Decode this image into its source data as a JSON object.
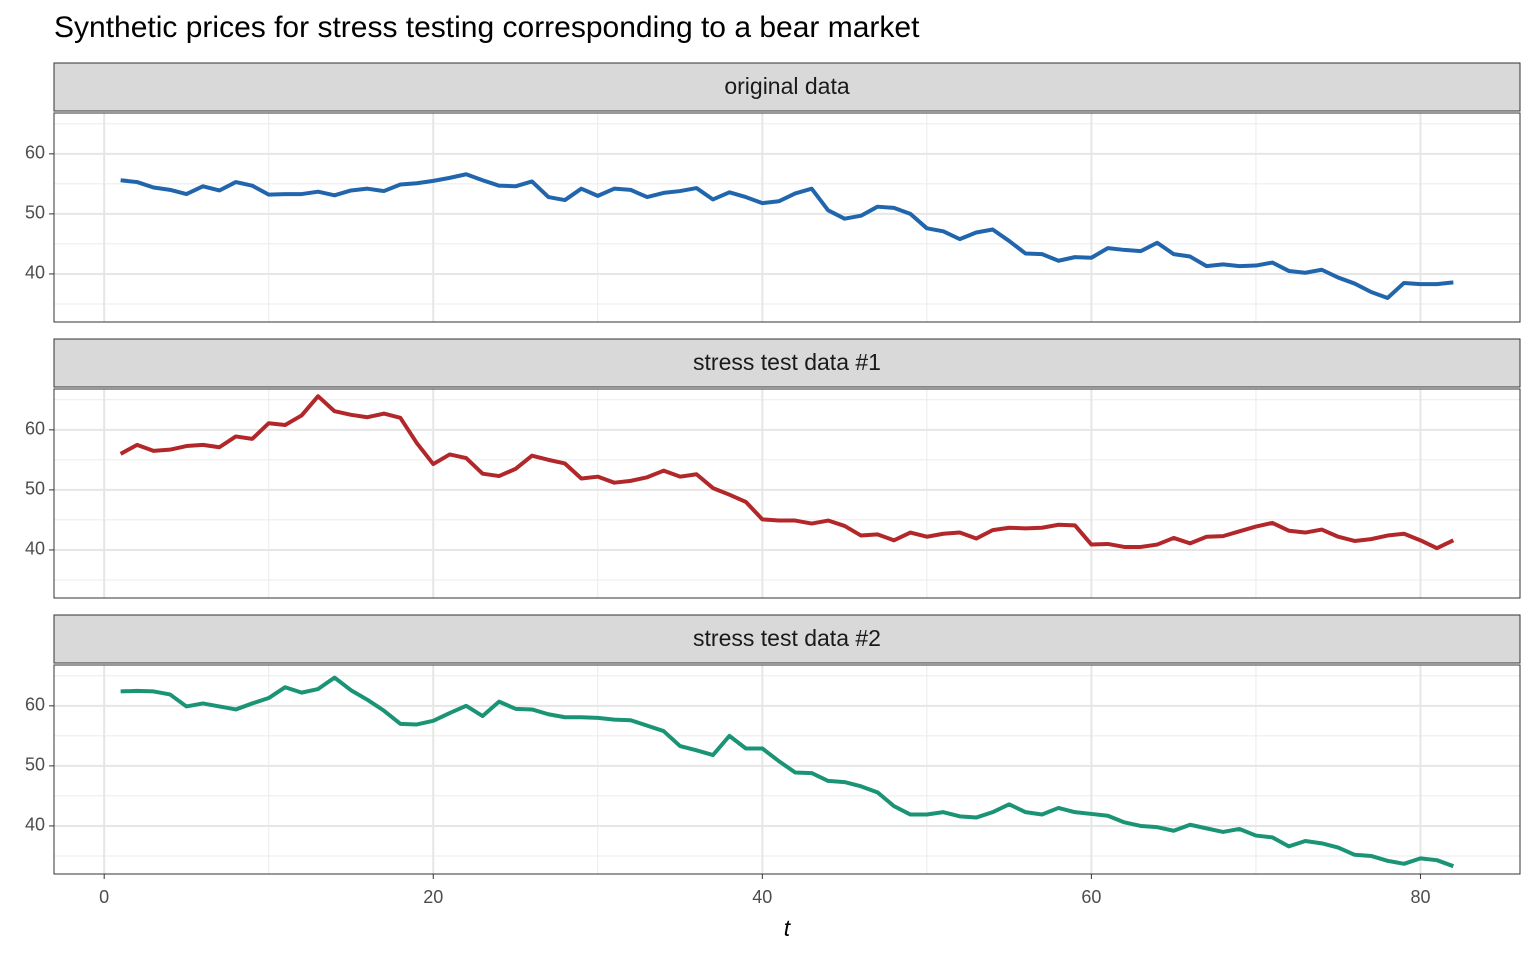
{
  "title": "Synthetic prices for stress testing corresponding to a bear market",
  "chart_data": [
    {
      "type": "line",
      "panel_title": "original data",
      "color": "#2166ac",
      "grid": true,
      "xlim": [
        -3.05,
        86.05
      ],
      "ylim": [
        32,
        66.8
      ],
      "xticks": [
        0,
        20,
        40,
        60,
        80
      ],
      "yticks": [
        40,
        50,
        60
      ],
      "minor_xticks": [
        10,
        30,
        50,
        70
      ],
      "minor_yticks": [
        35,
        45,
        55,
        65
      ],
      "x": [
        1,
        2,
        3,
        4,
        5,
        6,
        7,
        8,
        9,
        10,
        11,
        12,
        13,
        14,
        15,
        16,
        17,
        18,
        19,
        20,
        21,
        22,
        23,
        24,
        25,
        26,
        27,
        28,
        29,
        30,
        31,
        32,
        33,
        34,
        35,
        36,
        37,
        38,
        39,
        40,
        41,
        42,
        43,
        44,
        45,
        46,
        47,
        48,
        49,
        50,
        51,
        52,
        53,
        54,
        55,
        56,
        57,
        58,
        59,
        60,
        61,
        62,
        63,
        64,
        65,
        66,
        67,
        68,
        69,
        70,
        71,
        72,
        73,
        74,
        75,
        76,
        77,
        78,
        79,
        80,
        81,
        82
      ],
      "values": [
        55.6,
        55.3,
        54.4,
        54.0,
        53.3,
        54.6,
        53.9,
        55.3,
        54.7,
        53.2,
        53.3,
        53.3,
        53.7,
        53.1,
        53.9,
        54.2,
        53.8,
        54.9,
        55.1,
        55.5,
        56.0,
        56.6,
        55.6,
        54.7,
        54.6,
        55.4,
        52.8,
        52.3,
        54.2,
        53.0,
        54.2,
        54.0,
        52.8,
        53.5,
        53.8,
        54.3,
        52.4,
        53.6,
        52.8,
        51.8,
        52.1,
        53.4,
        54.2,
        50.6,
        49.2,
        49.7,
        51.2,
        51.0,
        50.0,
        47.6,
        47.1,
        45.8,
        46.9,
        47.4,
        45.5,
        43.4,
        43.3,
        42.2,
        42.8,
        42.7,
        44.3,
        44.0,
        43.8,
        45.2,
        43.3,
        42.9,
        41.3,
        41.6,
        41.3,
        41.4,
        41.9,
        40.5,
        40.2,
        40.7,
        39.4,
        38.4,
        37.0,
        36.0,
        38.5,
        38.3,
        38.3,
        38.6
      ]
    },
    {
      "type": "line",
      "panel_title": "stress test data #1",
      "color": "#b2282a",
      "grid": true,
      "xlim": [
        -3.05,
        86.05
      ],
      "ylim": [
        32,
        66.8
      ],
      "xticks": [
        0,
        20,
        40,
        60,
        80
      ],
      "yticks": [
        40,
        50,
        60
      ],
      "minor_xticks": [
        10,
        30,
        50,
        70
      ],
      "minor_yticks": [
        35,
        45,
        55,
        65
      ],
      "x": [
        1,
        2,
        3,
        4,
        5,
        6,
        7,
        8,
        9,
        10,
        11,
        12,
        13,
        14,
        15,
        16,
        17,
        18,
        19,
        20,
        21,
        22,
        23,
        24,
        25,
        26,
        27,
        28,
        29,
        30,
        31,
        32,
        33,
        34,
        35,
        36,
        37,
        38,
        39,
        40,
        41,
        42,
        43,
        44,
        45,
        46,
        47,
        48,
        49,
        50,
        51,
        52,
        53,
        54,
        55,
        56,
        57,
        58,
        59,
        60,
        61,
        62,
        63,
        64,
        65,
        66,
        67,
        68,
        69,
        70,
        71,
        72,
        73,
        74,
        75,
        76,
        77,
        78,
        79,
        80,
        81,
        82
      ],
      "values": [
        56.0,
        57.5,
        56.5,
        56.7,
        57.3,
        57.5,
        57.1,
        58.9,
        58.5,
        61.1,
        60.8,
        62.4,
        65.6,
        63.1,
        62.5,
        62.1,
        62.7,
        62.0,
        57.8,
        54.3,
        55.9,
        55.3,
        52.7,
        52.3,
        53.5,
        55.7,
        55.0,
        54.4,
        51.9,
        52.2,
        51.2,
        51.5,
        52.1,
        53.2,
        52.2,
        52.6,
        50.3,
        49.2,
        48.0,
        45.1,
        44.9,
        44.9,
        44.4,
        44.9,
        44.0,
        42.4,
        42.6,
        41.6,
        42.9,
        42.2,
        42.7,
        42.9,
        41.9,
        43.3,
        43.7,
        43.6,
        43.7,
        44.2,
        44.1,
        40.9,
        41.0,
        40.5,
        40.5,
        40.9,
        42.0,
        41.1,
        42.2,
        42.3,
        43.1,
        43.9,
        44.5,
        43.2,
        42.9,
        43.4,
        42.2,
        41.5,
        41.8,
        42.4,
        42.7,
        41.6,
        40.3,
        41.6
      ]
    },
    {
      "type": "line",
      "panel_title": "stress test data #2",
      "color": "#1b9476",
      "grid": true,
      "xlim": [
        -3.05,
        86.05
      ],
      "ylim": [
        32,
        66.8
      ],
      "xticks": [
        0,
        20,
        40,
        60,
        80
      ],
      "yticks": [
        40,
        50,
        60
      ],
      "minor_xticks": [
        10,
        30,
        50,
        70
      ],
      "minor_yticks": [
        35,
        45,
        55,
        65
      ],
      "xlabel": "t",
      "x": [
        1,
        2,
        3,
        4,
        5,
        6,
        7,
        8,
        9,
        10,
        11,
        12,
        13,
        14,
        15,
        16,
        17,
        18,
        19,
        20,
        21,
        22,
        23,
        24,
        25,
        26,
        27,
        28,
        29,
        30,
        31,
        32,
        33,
        34,
        35,
        36,
        37,
        38,
        39,
        40,
        41,
        42,
        43,
        44,
        45,
        46,
        47,
        48,
        49,
        50,
        51,
        52,
        53,
        54,
        55,
        56,
        57,
        58,
        59,
        60,
        61,
        62,
        63,
        64,
        65,
        66,
        67,
        68,
        69,
        70,
        71,
        72,
        73,
        74,
        75,
        76,
        77,
        78,
        79,
        80,
        81,
        82
      ],
      "values": [
        62.4,
        62.5,
        62.4,
        61.9,
        59.9,
        60.4,
        59.9,
        59.4,
        60.4,
        61.3,
        63.1,
        62.2,
        62.8,
        64.7,
        62.6,
        61.0,
        59.2,
        57.0,
        56.9,
        57.5,
        58.8,
        60.0,
        58.3,
        60.7,
        59.5,
        59.4,
        58.6,
        58.1,
        58.1,
        58.0,
        57.7,
        57.6,
        56.7,
        55.8,
        53.3,
        52.6,
        51.8,
        55.0,
        52.9,
        52.9,
        50.8,
        48.9,
        48.8,
        47.5,
        47.3,
        46.6,
        45.6,
        43.3,
        41.9,
        41.9,
        42.3,
        41.6,
        41.4,
        42.3,
        43.6,
        42.3,
        41.9,
        43.0,
        42.3,
        42.0,
        41.7,
        40.6,
        40.0,
        39.8,
        39.2,
        40.2,
        39.6,
        39.0,
        39.5,
        38.4,
        38.1,
        36.6,
        37.5,
        37.1,
        36.4,
        35.2,
        35.0,
        34.2,
        33.7,
        34.6,
        34.3,
        33.3
      ]
    }
  ]
}
